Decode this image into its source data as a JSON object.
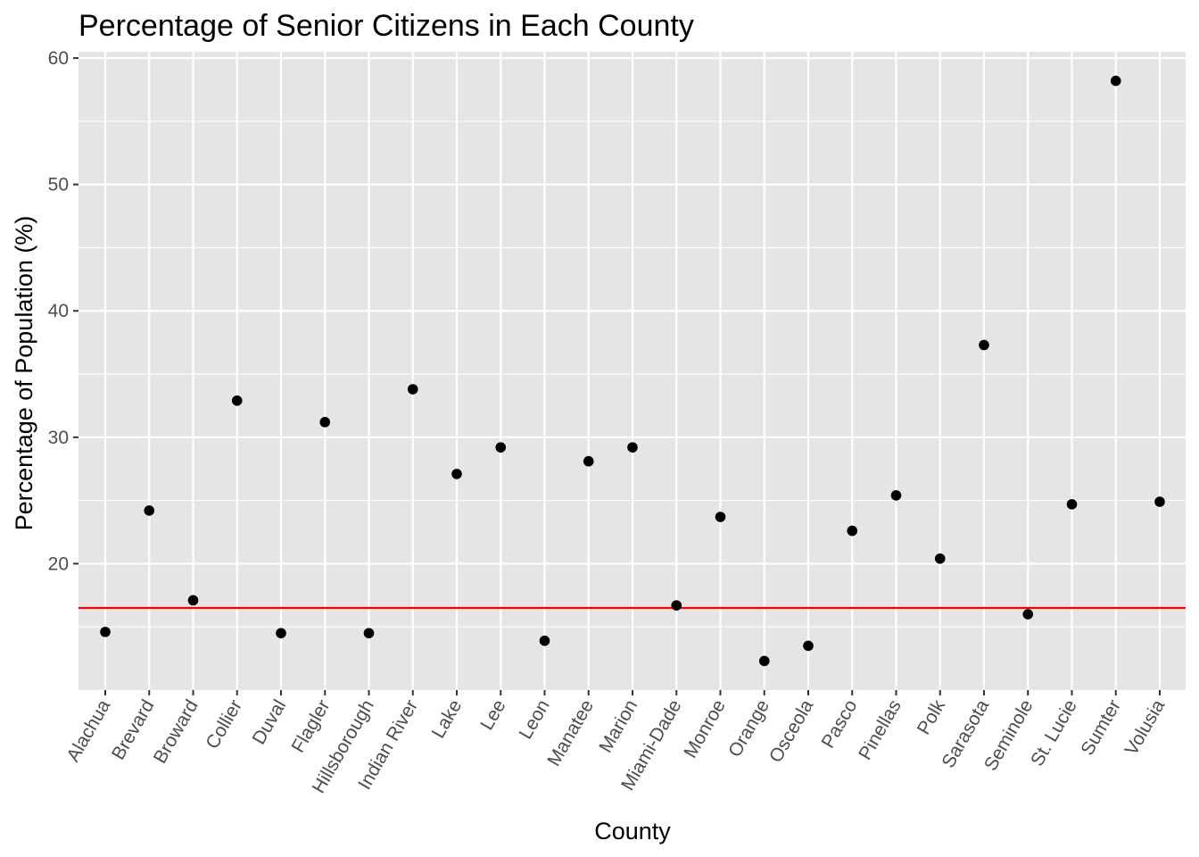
{
  "chart_data": {
    "type": "scatter",
    "title": "Percentage of Senior Citizens in Each County",
    "xlabel": "County",
    "ylabel": "Percentage of Population (%)",
    "categories": [
      "Alachua",
      "Brevard",
      "Broward",
      "Collier",
      "Duval",
      "Flagler",
      "Hillsborough",
      "Indian River",
      "Lake",
      "Lee",
      "Leon",
      "Manatee",
      "Marion",
      "Miami-Dade",
      "Monroe",
      "Orange",
      "Osceola",
      "Pasco",
      "Pinellas",
      "Polk",
      "Sarasota",
      "Seminole",
      "St. Lucie",
      "Sumter",
      "Volusia"
    ],
    "values": [
      14.6,
      24.2,
      17.1,
      32.9,
      14.5,
      31.2,
      14.5,
      33.8,
      27.1,
      29.2,
      13.9,
      28.1,
      29.2,
      16.7,
      23.7,
      12.3,
      13.5,
      22.6,
      25.4,
      20.4,
      37.3,
      16.0,
      24.7,
      58.2,
      24.9
    ],
    "yticks": [
      20,
      30,
      40,
      50,
      60
    ],
    "ylim": [
      10.0,
      60.5
    ],
    "reference_line": {
      "y": 16.5,
      "color": "#ff0000"
    },
    "grid": true,
    "colors": {
      "panel": "#e5e5e5",
      "grid": "#ffffff",
      "point": "#000000",
      "tick_text": "#4d4d4d"
    }
  }
}
